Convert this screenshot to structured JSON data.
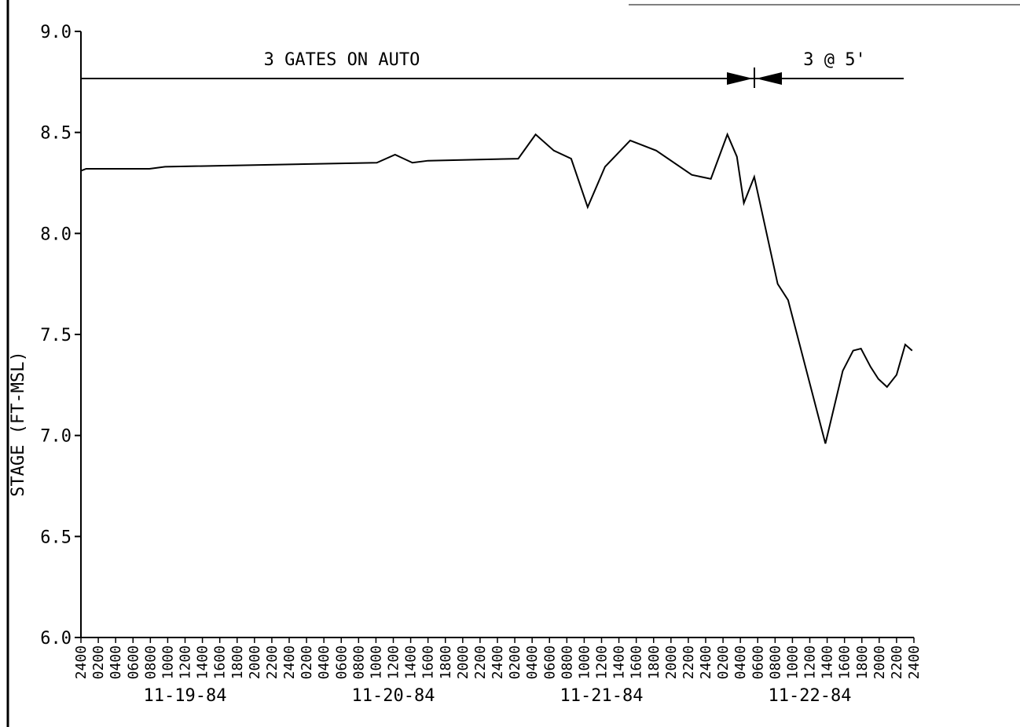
{
  "chart_data": {
    "type": "line",
    "ylabel": "STAGE (FT-MSL)",
    "annotations": [
      "3 GATES ON AUTO",
      "3 @ 5'"
    ],
    "date_labels": [
      "11-19-84",
      "11-20-84",
      "11-21-84",
      "11-22-84"
    ],
    "xlim": [
      0,
      96
    ],
    "ylim": [
      6.0,
      9.0
    ],
    "yticks": [
      {
        "value": 6,
        "label": "6.0"
      },
      {
        "value": 6.5,
        "label": "6.5"
      },
      {
        "value": 7,
        "label": "7.0"
      },
      {
        "value": 7.5,
        "label": "7.5"
      },
      {
        "value": 8,
        "label": "8.0"
      },
      {
        "value": 8.5,
        "label": "8.5"
      },
      {
        "value": 9,
        "label": "9.0"
      }
    ],
    "xticks": [
      {
        "value": 0,
        "label": "2400"
      },
      {
        "value": 2,
        "label": "0200"
      },
      {
        "value": 4,
        "label": "0400"
      },
      {
        "value": 6,
        "label": "0600"
      },
      {
        "value": 8,
        "label": "0800"
      },
      {
        "value": 10,
        "label": "1000"
      },
      {
        "value": 12,
        "label": "1200"
      },
      {
        "value": 14,
        "label": "1400"
      },
      {
        "value": 16,
        "label": "1600"
      },
      {
        "value": 18,
        "label": "1800"
      },
      {
        "value": 20,
        "label": "2000"
      },
      {
        "value": 22,
        "label": "2200"
      },
      {
        "value": 24,
        "label": "2400"
      },
      {
        "value": 26,
        "label": "0200"
      },
      {
        "value": 28,
        "label": "0400"
      },
      {
        "value": 30,
        "label": "0600"
      },
      {
        "value": 32,
        "label": "0800"
      },
      {
        "value": 34,
        "label": "1000"
      },
      {
        "value": 36,
        "label": "1200"
      },
      {
        "value": 38,
        "label": "1400"
      },
      {
        "value": 40,
        "label": "1600"
      },
      {
        "value": 42,
        "label": "1800"
      },
      {
        "value": 44,
        "label": "2000"
      },
      {
        "value": 46,
        "label": "2200"
      },
      {
        "value": 48,
        "label": "2400"
      },
      {
        "value": 50,
        "label": "0200"
      },
      {
        "value": 52,
        "label": "0400"
      },
      {
        "value": 54,
        "label": "0600"
      },
      {
        "value": 56,
        "label": "0800"
      },
      {
        "value": 58,
        "label": "1000"
      },
      {
        "value": 60,
        "label": "1200"
      },
      {
        "value": 62,
        "label": "1400"
      },
      {
        "value": 64,
        "label": "1600"
      },
      {
        "value": 66,
        "label": "1800"
      },
      {
        "value": 68,
        "label": "2000"
      },
      {
        "value": 70,
        "label": "2200"
      },
      {
        "value": 72,
        "label": "2400"
      },
      {
        "value": 74,
        "label": "0200"
      },
      {
        "value": 76,
        "label": "0400"
      },
      {
        "value": 78,
        "label": "0600"
      },
      {
        "value": 80,
        "label": "0800"
      },
      {
        "value": 82,
        "label": "1000"
      },
      {
        "value": 84,
        "label": "1200"
      },
      {
        "value": 86,
        "label": "1400"
      },
      {
        "value": 88,
        "label": "1600"
      },
      {
        "value": 90,
        "label": "1800"
      },
      {
        "value": 92,
        "label": "2000"
      },
      {
        "value": 94,
        "label": "2200"
      },
      {
        "value": 96,
        "label": "2400"
      }
    ],
    "color": "#000000",
    "x": [
      0,
      0.6,
      7.9,
      9.7,
      34.1,
      36.2,
      38.2,
      40,
      50.4,
      52.4,
      54.5,
      56.5,
      58.4,
      60.4,
      63.3,
      64.5,
      66.3,
      70.4,
      72.6,
      74.5,
      75.6,
      76.4,
      77.6,
      80.3,
      81.5,
      85.8,
      87.8,
      89,
      89.9,
      91,
      91.9,
      92.9,
      94,
      95,
      95.8
    ],
    "values": [
      8.31,
      8.32,
      8.32,
      8.33,
      8.35,
      8.39,
      8.35,
      8.36,
      8.37,
      8.49,
      8.41,
      8.37,
      8.13,
      8.33,
      8.46,
      8.44,
      8.41,
      8.29,
      8.27,
      8.49,
      8.38,
      8.15,
      8.28,
      7.75,
      7.67,
      6.96,
      7.32,
      7.42,
      7.43,
      7.34,
      7.28,
      7.24,
      7.3,
      7.45,
      7.42
    ]
  }
}
